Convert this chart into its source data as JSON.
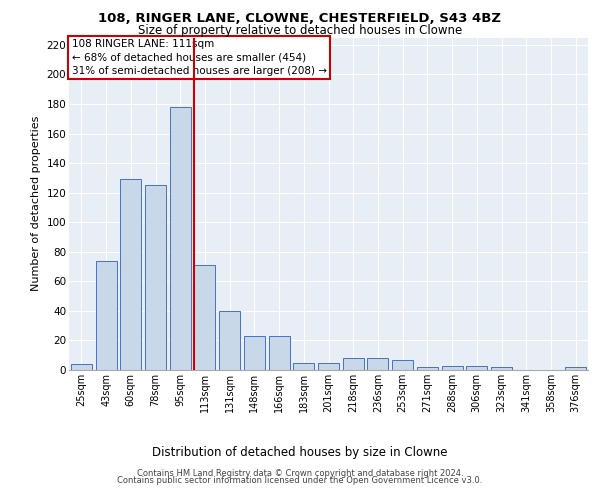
{
  "title1": "108, RINGER LANE, CLOWNE, CHESTERFIELD, S43 4BZ",
  "title2": "Size of property relative to detached houses in Clowne",
  "xlabel": "Distribution of detached houses by size in Clowne",
  "ylabel": "Number of detached properties",
  "categories": [
    "25sqm",
    "43sqm",
    "60sqm",
    "78sqm",
    "95sqm",
    "113sqm",
    "131sqm",
    "148sqm",
    "166sqm",
    "183sqm",
    "201sqm",
    "218sqm",
    "236sqm",
    "253sqm",
    "271sqm",
    "288sqm",
    "306sqm",
    "323sqm",
    "341sqm",
    "358sqm",
    "376sqm"
  ],
  "values": [
    4,
    74,
    129,
    125,
    178,
    71,
    40,
    23,
    23,
    5,
    5,
    8,
    8,
    7,
    2,
    3,
    3,
    2,
    0,
    0,
    2
  ],
  "bar_color": "#c8d8e8",
  "bar_edge_color": "#4472c4",
  "vline_color": "#cc0000",
  "vline_pos": 4.575,
  "annotation_title": "108 RINGER LANE: 111sqm",
  "annotation_line1": "← 68% of detached houses are smaller (454)",
  "annotation_line2": "31% of semi-detached houses are larger (208) →",
  "annotation_box_color": "#cc0000",
  "ylim": [
    0,
    225
  ],
  "yticks": [
    0,
    20,
    40,
    60,
    80,
    100,
    120,
    140,
    160,
    180,
    200,
    220
  ],
  "footer1": "Contains HM Land Registry data © Crown copyright and database right 2024.",
  "footer2": "Contains public sector information licensed under the Open Government Licence v3.0.",
  "bg_color": "#e8eef5",
  "grid_color": "#ffffff",
  "title1_fontsize": 9.5,
  "title2_fontsize": 8.5,
  "ylabel_fontsize": 8,
  "xlabel_fontsize": 8.5,
  "tick_fontsize": 7,
  "ytick_fontsize": 7.5,
  "footer_fontsize": 6,
  "ann_fontsize": 7.5
}
